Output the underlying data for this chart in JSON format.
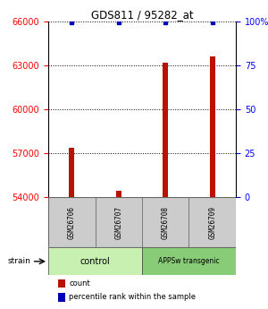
{
  "title": "GDS811 / 95282_at",
  "samples": [
    "GSM26706",
    "GSM26707",
    "GSM26708",
    "GSM26709"
  ],
  "count_values": [
    57400,
    54450,
    63200,
    63650
  ],
  "percentile_values": [
    99.5,
    99.5,
    99.5,
    99.5
  ],
  "groups": [
    {
      "label": "control",
      "color": "#bbeeaa"
    },
    {
      "label": "APPSw transgenic",
      "color": "#88cc77"
    }
  ],
  "ylim_left": [
    54000,
    66000
  ],
  "yticks_left": [
    54000,
    57000,
    60000,
    63000,
    66000
  ],
  "ylim_right": [
    0,
    100
  ],
  "yticks_right": [
    0,
    25,
    50,
    75,
    100
  ],
  "bar_color": "#bb1100",
  "dot_color": "#0000bb",
  "bar_width": 0.12,
  "sample_box_color": "#cccccc",
  "legend_count_color": "#bb1100",
  "legend_percentile_color": "#0000bb",
  "control_color": "#c8f0b0",
  "appssw_color": "#88cc77"
}
